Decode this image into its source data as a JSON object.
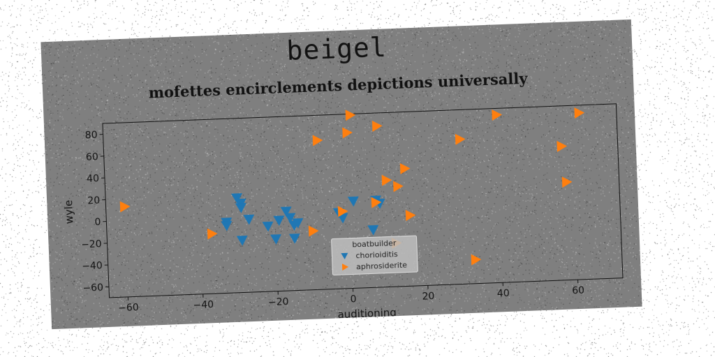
{
  "page": {
    "title": "beigel"
  },
  "chart_data": {
    "type": "scatter",
    "title": "mofettes encirclements depictions universally",
    "xlabel": "auditioning",
    "ylabel": "wyle",
    "xlim": [
      -65,
      72
    ],
    "ylim": [
      -70,
      90
    ],
    "xticks": [
      -60,
      -40,
      -20,
      0,
      20,
      40,
      60
    ],
    "yticks": [
      -60,
      -40,
      -20,
      0,
      20,
      40,
      60,
      80
    ],
    "grid": false,
    "legend": {
      "title": "boatbuilder",
      "placement": "lower-center"
    },
    "colors": {
      "background": "#7f7f7f",
      "chorioiditis": "#1f77b4",
      "aphrosiderite": "#ff7f0e"
    },
    "series": [
      {
        "name": "chorioiditis",
        "marker": "triangle-down",
        "points": [
          [
            -30,
            17
          ],
          [
            -29,
            12
          ],
          [
            -29,
            8
          ],
          [
            -27,
            -3
          ],
          [
            -33,
            -5
          ],
          [
            -33,
            -8
          ],
          [
            -29,
            -22
          ],
          [
            -22,
            -10
          ],
          [
            -20,
            -22
          ],
          [
            -19,
            -5
          ],
          [
            -17,
            3
          ],
          [
            -16,
            -3
          ],
          [
            -15,
            -10
          ],
          [
            -14,
            -8
          ],
          [
            -15,
            -22
          ],
          [
            -3,
            0
          ],
          [
            -2,
            -5
          ],
          [
            1,
            10
          ],
          [
            7,
            10
          ],
          [
            8,
            7
          ],
          [
            6,
            -17
          ]
        ]
      },
      {
        "name": "aphrosiderite",
        "marker": "triangle-right",
        "points": [
          [
            -60,
            13
          ],
          [
            -37,
            -15
          ],
          [
            -10,
            -16
          ],
          [
            -8,
            67
          ],
          [
            -2,
            1
          ],
          [
            0,
            73
          ],
          [
            1,
            89
          ],
          [
            7,
            8
          ],
          [
            8,
            78
          ],
          [
            10,
            28
          ],
          [
            13,
            22
          ],
          [
            15,
            38
          ],
          [
            16,
            -5
          ],
          [
            12,
            -30
          ],
          [
            30,
            63
          ],
          [
            33,
            -48
          ],
          [
            40,
            84
          ],
          [
            57,
            53
          ],
          [
            58,
            20
          ],
          [
            62,
            83
          ]
        ]
      }
    ]
  }
}
